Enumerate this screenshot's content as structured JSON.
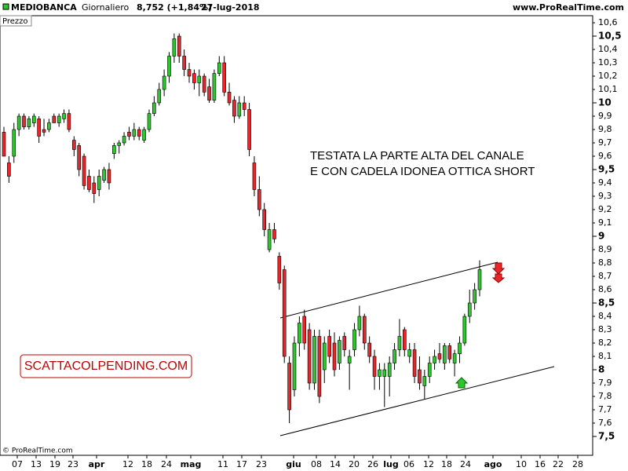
{
  "chart_data": {
    "type": "candlestick",
    "symbol": "MEDIOBANCA",
    "period": "Giornaliero",
    "last": "8,752 (+1,84%)",
    "date": "27-lug-2018",
    "site": "www.ProRealTime.com",
    "panel_label": "Prezzo",
    "copyright": "© ProRealTime.com",
    "annotations": [
      "TESTATA LA PARTE ALTA DEL CANALE",
      "E CON CADELA IDONEA OTTICA SHORT",
      "SCATTACOLPENDING.COM"
    ],
    "up_color": "#2fc52f",
    "down_color": "#e8262a",
    "ylim": [
      7.5,
      10.6
    ],
    "yticks": [
      {
        "value": 7.5,
        "label": "7,5"
      },
      {
        "value": 7.6,
        "label": "7,6"
      },
      {
        "value": 7.7,
        "label": "7,7"
      },
      {
        "value": 7.8,
        "label": "7,8"
      },
      {
        "value": 7.9,
        "label": "7,9"
      },
      8,
      {
        "value": 8.1,
        "label": "8,1"
      },
      {
        "value": 8.2,
        "label": "8,2"
      },
      {
        "value": 8.3,
        "label": "8,3"
      },
      {
        "value": 8.4,
        "label": "8,4"
      },
      {
        "value": 8.5,
        "label": "8,5"
      },
      {
        "value": 8.6,
        "label": "8,6"
      },
      {
        "value": 8.7,
        "label": "8,7"
      },
      {
        "value": 8.8,
        "label": "8,8"
      },
      {
        "value": 8.9,
        "label": "8,9"
      },
      9,
      {
        "value": 9.1,
        "label": "9,1"
      },
      {
        "value": 9.2,
        "label": "9,2"
      },
      {
        "value": 9.3,
        "label": "9,3"
      },
      {
        "value": 9.4,
        "label": "9,4"
      },
      {
        "value": 9.5,
        "label": "9,5"
      },
      {
        "value": 9.6,
        "label": "9,6"
      },
      {
        "value": 9.7,
        "label": "9,7"
      },
      {
        "value": 9.8,
        "label": "9,8"
      },
      {
        "value": 9.9,
        "label": "9,9"
      },
      10,
      {
        "value": 10.1,
        "label": "10,1"
      },
      {
        "value": 10.2,
        "label": "10,2"
      },
      {
        "value": 10.3,
        "label": "10,3"
      },
      {
        "value": 10.4,
        "label": "10,4"
      },
      {
        "value": 10.5,
        "label": "10,5"
      },
      {
        "value": 10.6,
        "label": "10,6"
      }
    ],
    "xtick_labels": [
      "07",
      "13",
      "19",
      "23",
      "apr",
      "12",
      "18",
      "24",
      "mag",
      "11",
      "17",
      "23",
      "giu",
      "08",
      "14",
      "20",
      "26",
      "lug",
      "06",
      "12",
      "18",
      "24",
      "ago",
      "10",
      "16",
      "22",
      "28"
    ],
    "open": [
      9.78,
      9.55,
      9.6,
      9.8,
      9.9,
      9.82,
      9.85,
      9.88,
      9.8,
      9.8,
      9.9,
      9.85,
      9.88,
      9.92,
      9.72,
      9.68,
      9.6,
      9.45,
      9.4,
      9.35,
      9.42,
      9.5,
      9.62,
      9.68,
      9.7,
      9.78,
      9.75,
      9.8,
      9.72,
      9.8,
      9.92,
      10.0,
      10.1,
      10.2,
      10.35,
      10.5,
      10.35,
      10.25,
      10.22,
      10.15,
      10.2,
      10.12,
      10.02,
      10.22,
      10.3,
      10.08,
      10.02,
      9.9,
      10.0,
      9.95,
      9.55,
      9.35,
      9.2,
      8.9,
      9.05,
      8.85,
      8.75,
      8.05,
      7.85,
      8.2,
      8.4,
      8.3,
      7.9,
      8.25,
      8.0,
      8.25,
      8.2,
      8.05,
      8.25,
      8.05,
      8.15,
      8.3,
      8.4,
      8.2,
      8.1,
      7.95,
      7.95,
      7.95,
      8.05,
      8.15,
      8.3,
      8.1,
      8.15,
      8.0,
      7.88,
      7.95,
      8.05,
      8.12,
      8.05,
      8.18,
      8.05,
      8.12,
      8.2,
      8.4,
      8.5,
      8.6
    ],
    "high": [
      9.82,
      9.6,
      9.85,
      9.92,
      9.92,
      9.9,
      9.92,
      9.9,
      9.88,
      9.88,
      9.92,
      9.92,
      9.95,
      9.95,
      9.75,
      9.7,
      9.62,
      9.5,
      9.45,
      9.5,
      9.52,
      9.55,
      9.7,
      9.72,
      9.78,
      9.82,
      9.85,
      9.82,
      9.82,
      9.95,
      10.05,
      10.15,
      10.25,
      10.38,
      10.52,
      10.52,
      10.4,
      10.3,
      10.25,
      10.25,
      10.22,
      10.18,
      10.25,
      10.35,
      10.35,
      10.15,
      10.05,
      10.05,
      10.05,
      10.0,
      9.6,
      9.45,
      9.25,
      9.1,
      9.1,
      8.88,
      8.78,
      8.1,
      8.25,
      8.4,
      8.45,
      8.35,
      8.3,
      8.3,
      8.25,
      8.3,
      8.28,
      8.25,
      8.28,
      8.15,
      8.35,
      8.48,
      8.42,
      8.25,
      8.15,
      8.05,
      8.05,
      8.1,
      8.2,
      8.38,
      8.32,
      8.2,
      8.2,
      8.1,
      8.0,
      8.1,
      8.15,
      8.2,
      8.2,
      8.2,
      8.15,
      8.25,
      8.42,
      8.6,
      8.65,
      8.82
    ],
    "low": [
      9.6,
      9.4,
      9.55,
      9.75,
      9.8,
      9.8,
      9.82,
      9.7,
      9.75,
      9.78,
      9.85,
      9.82,
      9.85,
      9.78,
      9.6,
      9.45,
      9.35,
      9.33,
      9.25,
      9.3,
      9.4,
      9.35,
      9.58,
      9.62,
      9.68,
      9.72,
      9.72,
      9.72,
      9.7,
      9.78,
      9.9,
      9.98,
      10.05,
      10.15,
      10.3,
      10.3,
      10.2,
      10.15,
      10.1,
      10.05,
      10.05,
      10.0,
      10.0,
      10.2,
      10.05,
      9.98,
      9.85,
      9.88,
      9.9,
      9.6,
      9.3,
      9.15,
      9.0,
      8.88,
      8.95,
      8.6,
      8.05,
      7.6,
      7.8,
      8.1,
      8.15,
      7.85,
      7.85,
      7.75,
      7.9,
      8.05,
      7.95,
      8.0,
      8.1,
      7.85,
      8.1,
      8.25,
      8.15,
      8.05,
      7.85,
      7.85,
      7.72,
      7.8,
      8.0,
      8.1,
      8.1,
      8.05,
      7.9,
      7.85,
      7.78,
      7.9,
      8.0,
      8.05,
      8.0,
      8.05,
      7.95,
      8.05,
      8.18,
      8.35,
      8.45,
      8.55
    ],
    "close": [
      9.6,
      9.45,
      9.8,
      9.9,
      9.82,
      9.88,
      9.9,
      9.75,
      9.78,
      9.85,
      9.85,
      9.9,
      9.92,
      9.8,
      9.65,
      9.5,
      9.38,
      9.35,
      9.32,
      9.45,
      9.5,
      9.4,
      9.68,
      9.7,
      9.75,
      9.75,
      9.8,
      9.75,
      9.8,
      9.92,
      10.0,
      10.1,
      10.2,
      10.35,
      10.48,
      10.35,
      10.25,
      10.2,
      10.15,
      10.2,
      10.08,
      10.02,
      10.22,
      10.3,
      10.08,
      10.0,
      9.9,
      10.0,
      9.95,
      9.65,
      9.35,
      9.2,
      9.05,
      9.05,
      8.98,
      8.65,
      8.1,
      7.7,
      8.2,
      8.35,
      8.2,
      7.9,
      8.25,
      7.8,
      8.2,
      8.1,
      8.0,
      8.22,
      8.15,
      8.1,
      8.3,
      8.4,
      8.2,
      8.1,
      7.95,
      8.0,
      8.0,
      8.05,
      8.15,
      8.25,
      8.15,
      8.15,
      7.95,
      7.9,
      7.95,
      8.05,
      8.1,
      8.08,
      8.18,
      8.08,
      8.12,
      8.2,
      8.4,
      8.5,
      8.6,
      8.75
    ]
  }
}
